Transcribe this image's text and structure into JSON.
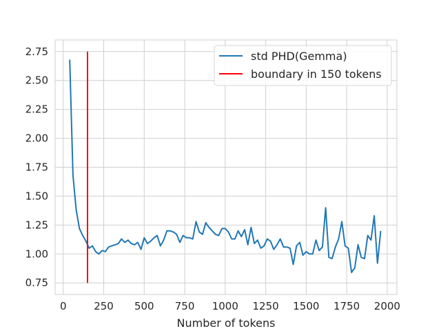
{
  "chart_data": {
    "type": "line",
    "title": "",
    "xlabel": "Number of tokens",
    "ylabel": "",
    "xlim": [
      -50,
      2060
    ],
    "ylim": [
      0.65,
      2.85
    ],
    "xticks": [
      0,
      250,
      500,
      750,
      1000,
      1250,
      1500,
      1750,
      2000
    ],
    "yticks": [
      0.75,
      1.0,
      1.25,
      1.5,
      1.75,
      2.0,
      2.25,
      2.5,
      2.75
    ],
    "ytick_labels": [
      "0.75",
      "1.00",
      "1.25",
      "1.50",
      "1.75",
      "2.00",
      "2.25",
      "2.50",
      "2.75"
    ],
    "grid": true,
    "legend_position": "top-right",
    "series": [
      {
        "name": "std PHD(Gemma)",
        "color": "#1f77b4",
        "x": [
          40,
          60,
          80,
          100,
          120,
          140,
          160,
          180,
          200,
          220,
          240,
          260,
          280,
          300,
          320,
          340,
          360,
          380,
          400,
          420,
          440,
          460,
          480,
          500,
          520,
          540,
          560,
          580,
          600,
          620,
          640,
          660,
          680,
          700,
          720,
          740,
          760,
          780,
          800,
          820,
          840,
          860,
          880,
          900,
          920,
          940,
          960,
          980,
          1000,
          1020,
          1040,
          1060,
          1080,
          1100,
          1120,
          1140,
          1160,
          1180,
          1200,
          1220,
          1240,
          1260,
          1280,
          1300,
          1320,
          1340,
          1360,
          1380,
          1400,
          1420,
          1440,
          1460,
          1480,
          1500,
          1520,
          1540,
          1560,
          1580,
          1600,
          1620,
          1640,
          1660,
          1680,
          1700,
          1720,
          1740,
          1760,
          1780,
          1800,
          1820,
          1840,
          1860,
          1880,
          1900,
          1920,
          1940,
          1960
        ],
        "values": [
          2.68,
          1.68,
          1.38,
          1.22,
          1.16,
          1.11,
          1.05,
          1.07,
          1.02,
          1.0,
          1.03,
          1.02,
          1.06,
          1.07,
          1.08,
          1.09,
          1.13,
          1.1,
          1.12,
          1.09,
          1.08,
          1.1,
          1.04,
          1.14,
          1.09,
          1.11,
          1.14,
          1.16,
          1.07,
          1.12,
          1.2,
          1.2,
          1.19,
          1.17,
          1.1,
          1.16,
          1.14,
          1.14,
          1.13,
          1.28,
          1.19,
          1.17,
          1.27,
          1.23,
          1.2,
          1.17,
          1.16,
          1.22,
          1.22,
          1.19,
          1.13,
          1.13,
          1.2,
          1.15,
          1.21,
          1.08,
          1.23,
          1.09,
          1.12,
          1.05,
          1.07,
          1.13,
          1.11,
          1.04,
          1.08,
          1.13,
          1.06,
          1.06,
          1.05,
          0.91,
          1.07,
          1.1,
          0.99,
          1.02,
          1.0,
          1.0,
          1.12,
          1.03,
          1.06,
          1.4,
          0.97,
          0.96,
          1.06,
          1.13,
          1.28,
          1.07,
          1.05,
          0.84,
          0.88,
          1.08,
          0.97,
          0.96,
          1.16,
          1.12,
          1.33,
          0.92,
          1.2
        ]
      },
      {
        "name": "boundary in 150 tokens",
        "color": "#ff0000",
        "x": [
          150,
          150
        ],
        "values": [
          0.75,
          2.75
        ]
      }
    ]
  }
}
